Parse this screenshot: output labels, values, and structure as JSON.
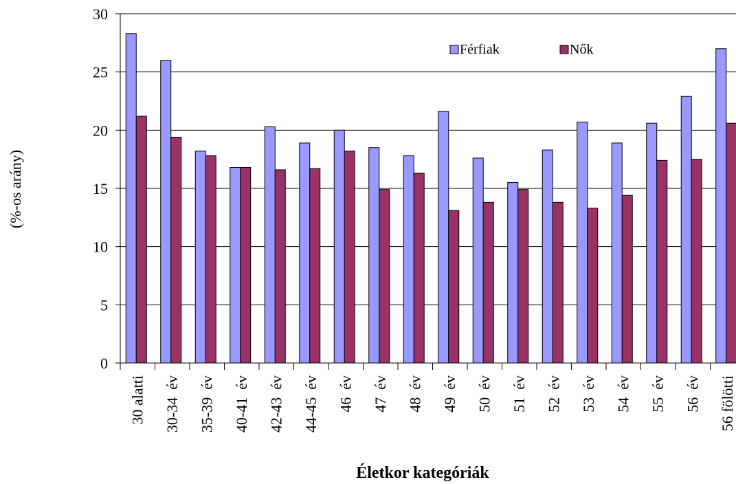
{
  "chart_data": {
    "type": "bar",
    "y_label": "(%-os arány)",
    "x_label": "Életkor kategóriák",
    "categories": [
      "30 alatti",
      "30-34  év",
      "35-39  év",
      "40-41  év",
      "42-43  év",
      "44-45  év",
      "46  év",
      "47  év",
      "48  év",
      "49  év",
      "50  év",
      "51  év",
      "52  év",
      "53  év",
      "54  év",
      "55  év",
      "56  év",
      "56 fölötti"
    ],
    "series": [
      {
        "name": "Férfiak",
        "color": "#9999ff",
        "values": [
          28.3,
          26.0,
          18.2,
          16.8,
          20.3,
          18.9,
          20.0,
          18.5,
          17.8,
          21.6,
          17.6,
          15.5,
          18.3,
          20.7,
          18.9,
          20.6,
          22.9,
          27.0
        ]
      },
      {
        "name": "Nők",
        "color": "#993366",
        "values": [
          21.2,
          19.4,
          17.8,
          16.8,
          16.6,
          16.7,
          18.2,
          14.9,
          16.3,
          13.1,
          13.8,
          14.9,
          13.8,
          13.3,
          14.4,
          17.4,
          17.5,
          20.6
        ]
      }
    ],
    "ylim": [
      0,
      30
    ],
    "yticks": [
      0,
      5,
      10,
      15,
      20,
      25,
      30
    ],
    "grid": true,
    "legend": "top-right"
  }
}
